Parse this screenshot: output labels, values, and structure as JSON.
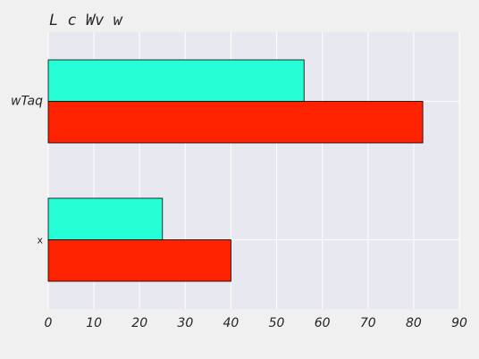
{
  "chart_data": {
    "type": "bar",
    "orientation": "horizontal",
    "title": "L c Wv w",
    "categories": [
      "x",
      "wTaq"
    ],
    "series": [
      {
        "values": [
          40,
          82
        ],
        "color": "#ff2200"
      },
      {
        "values": [
          25,
          56
        ],
        "color": "#26ffd5"
      }
    ],
    "xlim": [
      0,
      90
    ],
    "xticks": [
      0,
      10,
      20,
      30,
      40,
      50,
      60,
      70,
      80,
      90
    ],
    "grid": true,
    "background": "#e8e8f0"
  }
}
